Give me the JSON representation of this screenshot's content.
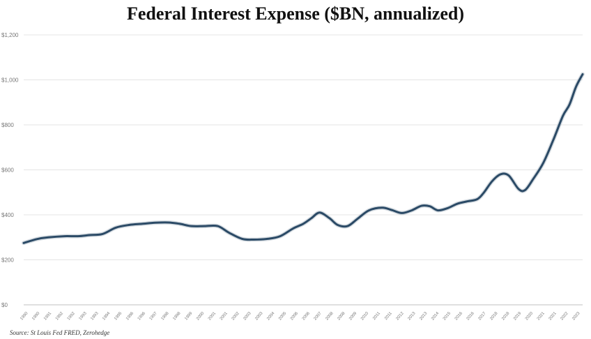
{
  "chart_data": {
    "type": "line",
    "title": "Federal Interest Expense ($BN, annualized)",
    "source": "Source: St Louis Fed FRED, Zerohedge",
    "xlabel": "",
    "ylabel": "",
    "ylim": [
      0,
      1200
    ],
    "xlim": [
      1990,
      2024
    ],
    "grid": true,
    "legend": "none",
    "yticks": [
      0,
      200,
      400,
      600,
      800,
      1000,
      1200
    ],
    "ytick_labels": [
      "$0",
      "$200",
      "$400",
      "$600",
      "$800",
      "$1,000",
      "$1,200"
    ],
    "xtick_labels": [
      "1990",
      "1990",
      "1991",
      "1992",
      "1992",
      "1993",
      "1993",
      "1994",
      "1995",
      "1996",
      "1996",
      "1997",
      "1998",
      "1998",
      "1999",
      "2000",
      "2001",
      "2001",
      "2002",
      "2003",
      "2003",
      "2004",
      "2005",
      "2006",
      "2006",
      "2007",
      "2008",
      "2008",
      "2009",
      "2010",
      "2011",
      "2011",
      "2012",
      "2013",
      "2013",
      "2014",
      "2015",
      "2016",
      "2016",
      "2017",
      "2018",
      "2018",
      "2019",
      "2020",
      "2021",
      "2021",
      "2022",
      "2023"
    ],
    "line_color": "#2b4a66",
    "series": [
      {
        "x": [
          1990,
          1990.8,
          1991.5,
          1992.5,
          1993.3,
          1994,
          1994.8,
          1995.6,
          1996.4,
          1997.2,
          1998,
          1998.8,
          1999.5,
          2000.2,
          2001,
          2001.8,
          2002.5,
          2003.3,
          2004,
          2004.8,
          2005.6,
          2006.4,
          2007,
          2007.5,
          2008,
          2008.6,
          2009.1,
          2009.7,
          2010.3,
          2011,
          2011.8,
          2012.4,
          2013,
          2013.6,
          2014.2,
          2014.7,
          2015.2,
          2015.8,
          2016.4,
          2017,
          2017.6,
          2018,
          2018.5,
          2019,
          2019.5,
          2020.1,
          2020.5,
          2021,
          2021.6,
          2022.2,
          2022.8,
          2023.2,
          2023.6,
          2024
        ],
        "values": [
          275,
          292,
          300,
          305,
          305,
          310,
          315,
          343,
          355,
          360,
          365,
          366,
          360,
          350,
          350,
          350,
          320,
          293,
          290,
          293,
          305,
          340,
          360,
          385,
          410,
          385,
          355,
          350,
          382,
          420,
          432,
          421,
          408,
          420,
          440,
          438,
          420,
          430,
          450,
          460,
          470,
          500,
          550,
          580,
          575,
          515,
          510,
          560,
          630,
          730,
          840,
          890,
          970,
          1025
        ]
      }
    ]
  }
}
